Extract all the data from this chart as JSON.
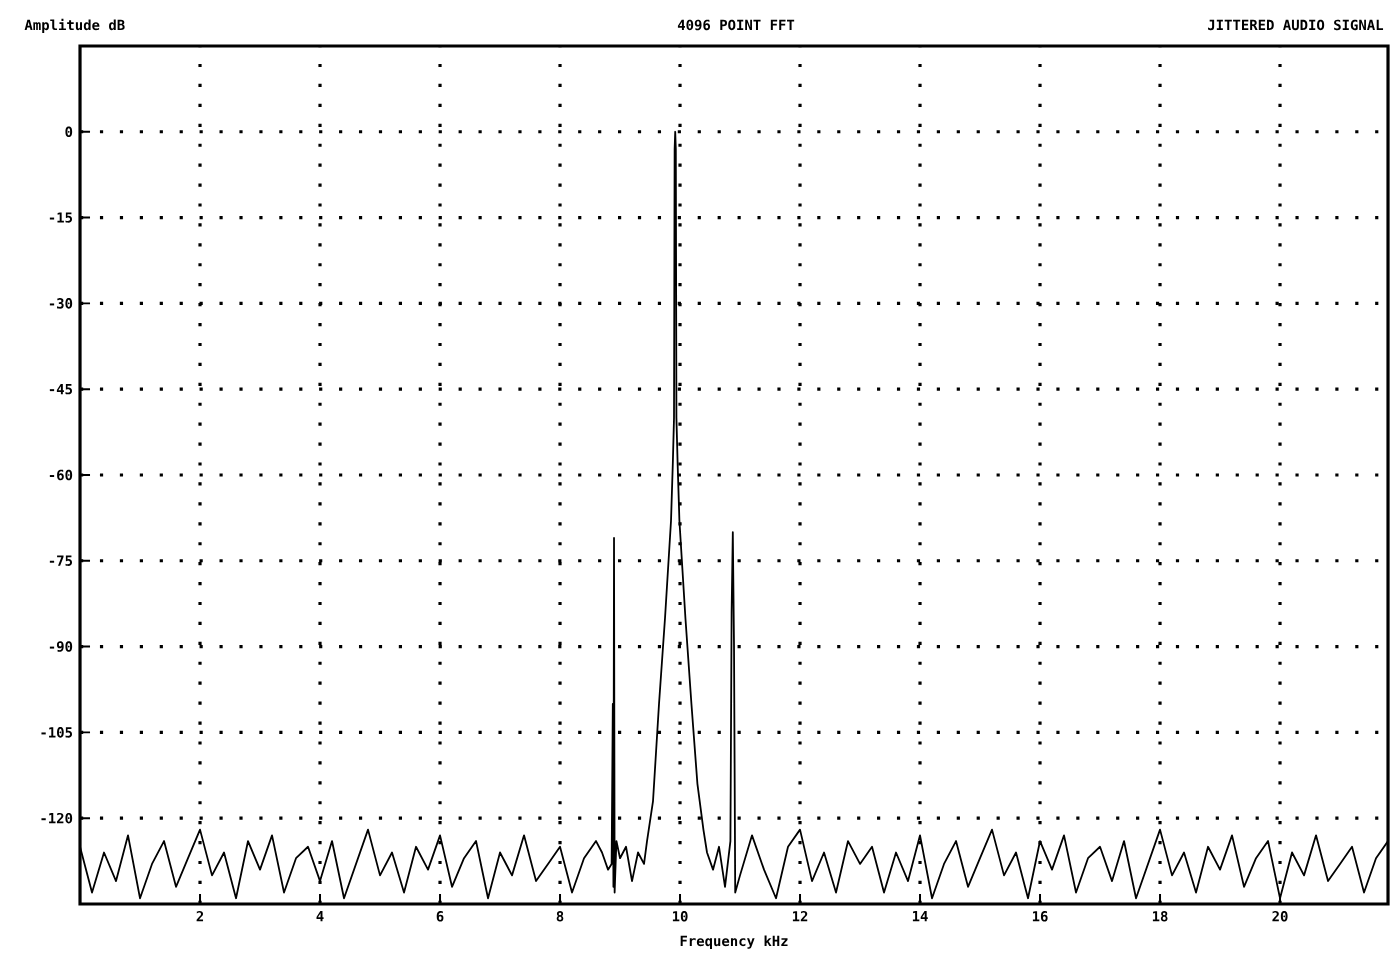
{
  "chart_data": {
    "type": "line",
    "title": "4096 POINT FFT",
    "ylabel": "Amplitude dB",
    "xlabel": "Frequency kHz",
    "annotations": [
      "JITTERED AUDIO SIGNAL"
    ],
    "xlim": [
      0,
      21.8
    ],
    "ylim": [
      -135,
      15
    ],
    "xticks": [
      2,
      4,
      6,
      8,
      10,
      12,
      14,
      16,
      18,
      20
    ],
    "yticks": [
      0,
      -15,
      -30,
      -45,
      -60,
      -75,
      -90,
      -105,
      -120
    ],
    "grid": true,
    "marker": "none",
    "line_style": "solid",
    "series": [
      {
        "color": "#000000",
        "x": [
          0.0,
          0.2,
          0.4,
          0.6,
          0.8,
          1.0,
          1.2,
          1.4,
          1.6,
          1.8,
          2.0,
          2.2,
          2.4,
          2.6,
          2.8,
          3.0,
          3.2,
          3.4,
          3.6,
          3.8,
          4.0,
          4.2,
          4.4,
          4.6,
          4.8,
          5.0,
          5.2,
          5.4,
          5.6,
          5.8,
          6.0,
          6.2,
          6.4,
          6.6,
          6.8,
          7.0,
          7.2,
          7.4,
          7.6,
          7.8,
          8.0,
          8.2,
          8.4,
          8.6,
          8.7,
          8.8,
          8.86,
          8.88,
          8.89,
          8.9,
          8.91,
          8.94,
          9.0,
          9.1,
          9.2,
          9.3,
          9.4,
          9.45,
          9.55,
          9.65,
          9.75,
          9.85,
          9.88,
          9.9,
          9.91,
          9.92,
          9.93,
          9.94,
          9.96,
          9.99,
          10.09,
          10.19,
          10.29,
          10.39,
          10.45,
          10.55,
          10.65,
          10.75,
          10.84,
          10.86,
          10.88,
          10.9,
          10.92,
          11.0,
          11.2,
          11.4,
          11.6,
          11.8,
          12.0,
          12.2,
          12.4,
          12.6,
          12.8,
          13.0,
          13.2,
          13.4,
          13.6,
          13.8,
          14.0,
          14.2,
          14.4,
          14.6,
          14.8,
          15.0,
          15.2,
          15.4,
          15.6,
          15.8,
          16.0,
          16.2,
          16.4,
          16.6,
          16.8,
          17.0,
          17.2,
          17.4,
          17.6,
          17.8,
          18.0,
          18.2,
          18.4,
          18.6,
          18.8,
          19.0,
          19.2,
          19.4,
          19.6,
          19.8,
          20.0,
          20.2,
          20.4,
          20.6,
          20.8,
          21.0,
          21.2,
          21.4,
          21.6,
          21.8
        ],
        "values": [
          -125,
          -133,
          -126,
          -131,
          -123,
          -134,
          -128,
          -124,
          -132,
          -127,
          -122,
          -130,
          -126,
          -134,
          -124,
          -129,
          -123,
          -133,
          -127,
          -125,
          -131,
          -124,
          -134,
          -128,
          -122,
          -130,
          -126,
          -133,
          -125,
          -129,
          -123,
          -132,
          -127,
          -124,
          -134,
          -126,
          -130,
          -123,
          -131,
          -128,
          -125,
          -133,
          -127,
          -124,
          -126,
          -129,
          -128,
          -100,
          -132,
          -71,
          -133,
          -124,
          -127,
          -125,
          -131,
          -126,
          -128,
          -124,
          -117,
          -100,
          -85,
          -68,
          -58,
          -50,
          -3,
          0,
          -3,
          -50,
          -58,
          -68,
          -85,
          -100,
          -114,
          -122,
          -126,
          -129,
          -125,
          -132,
          -124,
          -84,
          -70,
          -90,
          -133,
          -130,
          -123,
          -129,
          -134,
          -125,
          -122,
          -131,
          -126,
          -133,
          -124,
          -128,
          -125,
          -133,
          -126,
          -131,
          -123,
          -134,
          -128,
          -124,
          -132,
          -127,
          -122,
          -130,
          -126,
          -134,
          -124,
          -129,
          -123,
          -133,
          -127,
          -125,
          -131,
          -124,
          -134,
          -128,
          -122,
          -130,
          -126,
          -133,
          -125,
          -129,
          -123,
          -132,
          -127,
          -124,
          -134,
          -126,
          -130,
          -123,
          -131,
          -128,
          -125,
          -133,
          -127,
          -124
        ]
      }
    ]
  }
}
